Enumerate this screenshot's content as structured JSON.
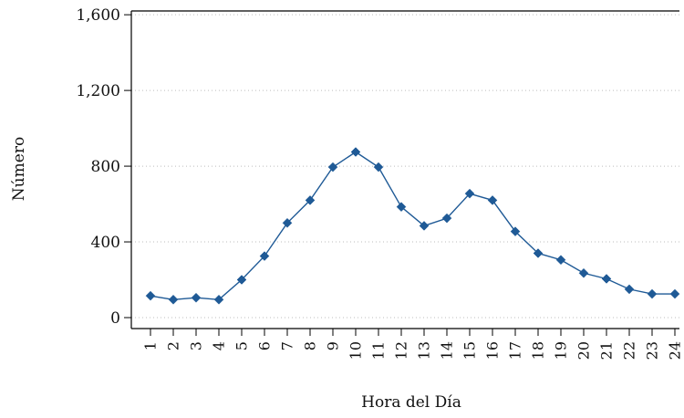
{
  "chart_data": {
    "type": "line",
    "xlabel": "Hora del Día",
    "ylabel": "Número",
    "categories": [
      "1",
      "2",
      "3",
      "4",
      "5",
      "6",
      "7",
      "8",
      "9",
      "10",
      "11",
      "12",
      "13",
      "14",
      "15",
      "16",
      "17",
      "18",
      "19",
      "20",
      "21",
      "22",
      "23",
      "24"
    ],
    "series": [
      {
        "values": [
          115,
          95,
          105,
          95,
          200,
          325,
          500,
          620,
          795,
          875,
          795,
          585,
          485,
          525,
          655,
          620,
          455,
          340,
          305,
          235,
          205,
          150,
          125,
          125
        ]
      }
    ],
    "ylim": [
      0,
      1600
    ],
    "yticks": [
      0,
      400,
      800,
      1200,
      1600
    ],
    "ytick_labels": [
      "0",
      "400",
      "800",
      "1,200",
      "1,600"
    ],
    "grid": true,
    "marker": "diamond",
    "color": "#1f5a96"
  }
}
